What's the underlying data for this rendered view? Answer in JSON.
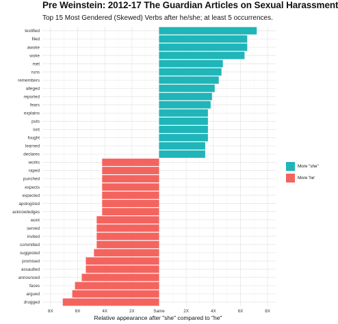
{
  "chart_data": {
    "type": "bar",
    "orientation": "horizontal",
    "title": "Pre Weinstein: 2012-17 The Guardian Articles on Sexual Harassment",
    "subtitle": "Top 15 Most Gendered (Skewed) Verbs after he/she; at least 5 occurrences.",
    "xlabel": "Relative appearance after \"she\" compared to \"he\"",
    "ylabel": "",
    "xlim": [
      -8.6,
      8.6
    ],
    "x_ticks": [
      {
        "value": -8,
        "label": "8X"
      },
      {
        "value": -6,
        "label": "6X"
      },
      {
        "value": -4,
        "label": "4X"
      },
      {
        "value": -2,
        "label": "2X"
      },
      {
        "value": 0,
        "label": "Same"
      },
      {
        "value": 2,
        "label": "2X"
      },
      {
        "value": 4,
        "label": "4X"
      },
      {
        "value": 6,
        "label": "6X"
      },
      {
        "value": 8,
        "label": "8X"
      }
    ],
    "grid": true,
    "legend_position": "right",
    "series": [
      {
        "name": "More \"she\"",
        "color": "#1fb5b9"
      },
      {
        "name": "More 'he'",
        "color": "#f4645f"
      }
    ],
    "categories": [
      "testified",
      "filed",
      "awoke",
      "woke",
      "met",
      "runs",
      "remembers",
      "alleged",
      "reported",
      "fears",
      "explains",
      "puts",
      "isnt",
      "fought",
      "learned",
      "declares",
      "works",
      "raped",
      "punched",
      "expects",
      "expected",
      "apologized",
      "acknowledges",
      "wont",
      "served",
      "invited",
      "committed",
      "suggested",
      "promised",
      "assaulted",
      "announced",
      "faces",
      "argued",
      "drugged"
    ],
    "values": [
      7.2,
      6.5,
      6.5,
      6.3,
      4.7,
      4.6,
      4.4,
      4.1,
      3.9,
      3.8,
      3.6,
      3.6,
      3.6,
      3.6,
      3.4,
      3.4,
      -4.2,
      -4.2,
      -4.2,
      -4.2,
      -4.2,
      -4.2,
      -4.2,
      -4.6,
      -4.6,
      -4.6,
      -4.6,
      -4.8,
      -5.4,
      -5.4,
      -5.7,
      -6.2,
      -6.4,
      -7.1
    ],
    "bar_series": [
      0,
      0,
      0,
      0,
      0,
      0,
      0,
      0,
      0,
      0,
      0,
      0,
      0,
      0,
      0,
      0,
      1,
      1,
      1,
      1,
      1,
      1,
      1,
      1,
      1,
      1,
      1,
      1,
      1,
      1,
      1,
      1,
      1,
      1
    ]
  }
}
